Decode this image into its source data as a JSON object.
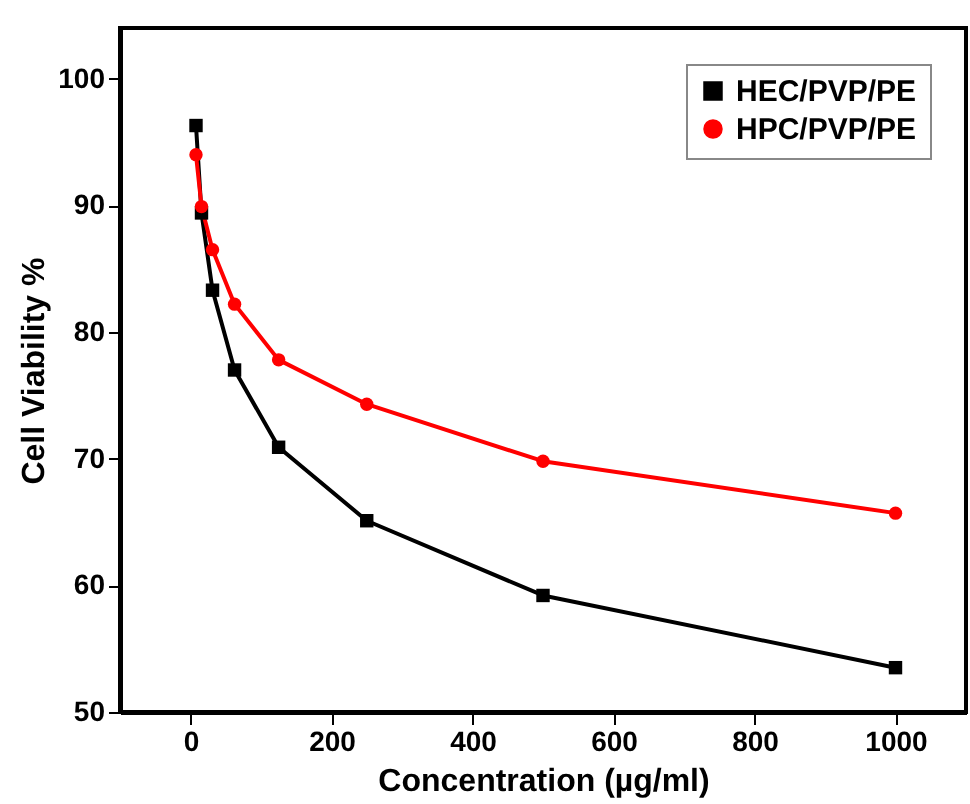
{
  "chart_data": {
    "type": "line",
    "xlabel": "Concentration (µg/ml)",
    "ylabel": "Cell Viability %",
    "x": [
      7.8,
      15.6,
      31.25,
      62.5,
      125,
      250,
      500,
      1000
    ],
    "series": [
      {
        "name": "HEC/PVP/PE",
        "color": "#000000",
        "marker": "square",
        "values": [
          96.3,
          89.4,
          83.3,
          77.0,
          70.9,
          65.1,
          59.2,
          53.5
        ]
      },
      {
        "name": "HPC/PVP/PE",
        "color": "#ff0000",
        "marker": "circle",
        "values": [
          94.0,
          89.9,
          86.5,
          82.2,
          77.8,
          74.3,
          69.8,
          65.7
        ]
      }
    ],
    "xlim": [
      -100,
      1100
    ],
    "ylim": [
      50,
      104
    ],
    "xticks": [
      0,
      200,
      400,
      600,
      800,
      1000
    ],
    "yticks": [
      50,
      60,
      70,
      80,
      90,
      100
    ],
    "grid": false,
    "legend": "top right",
    "line_style": "solid"
  }
}
